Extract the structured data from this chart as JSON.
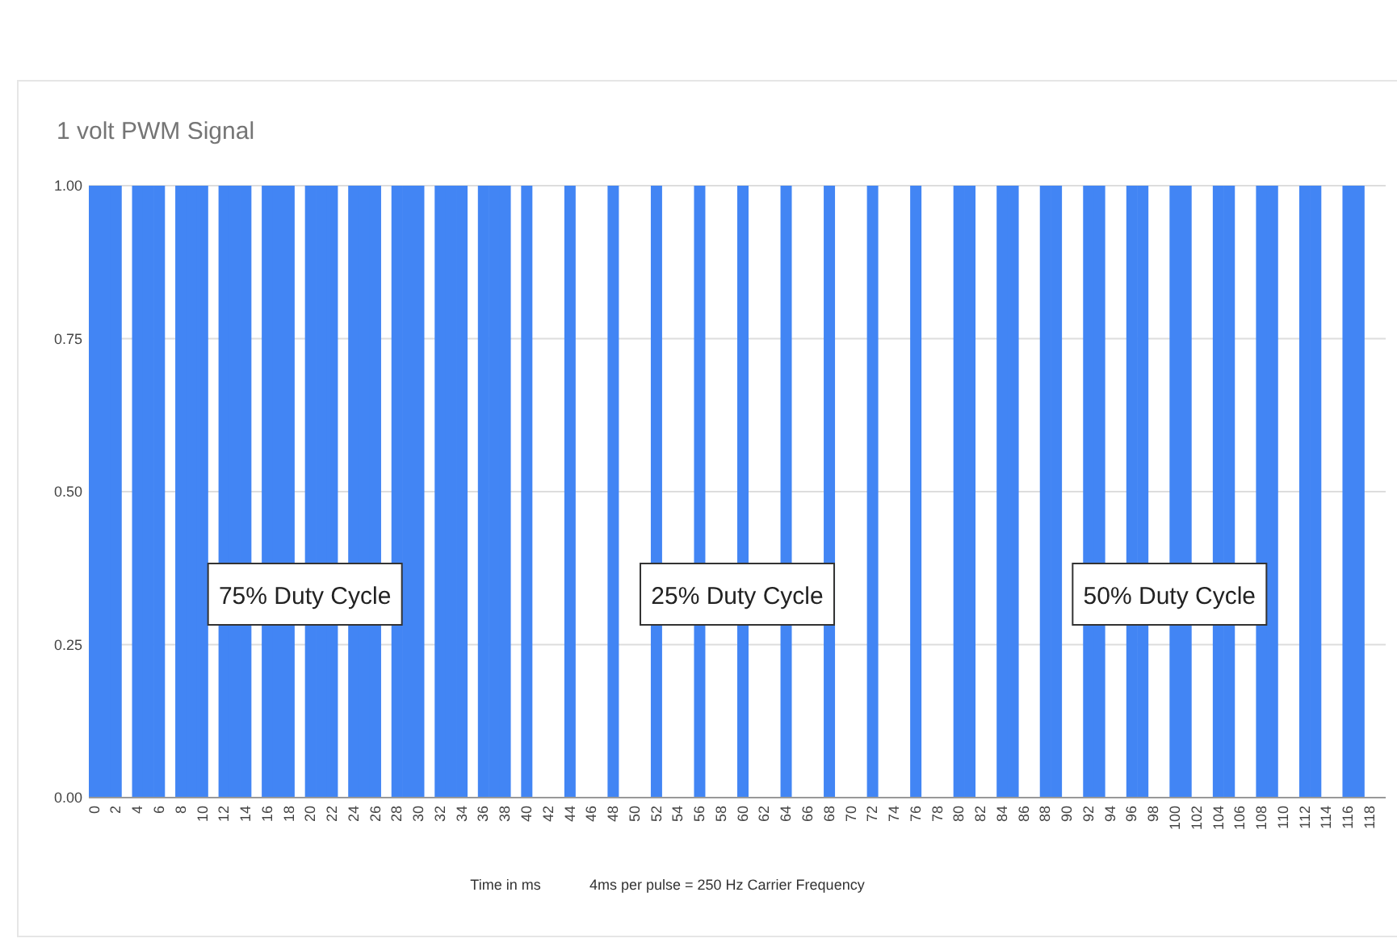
{
  "chart_data": {
    "type": "bar",
    "title": "1 volt PWM Signal",
    "xlabel": "Time in ms",
    "categories": [
      "0",
      null,
      "2",
      null,
      "4",
      null,
      "6",
      null,
      "8",
      null,
      "10",
      null,
      "12",
      null,
      "14",
      null,
      "16",
      null,
      "18",
      null,
      "20",
      null,
      "22",
      null,
      "24",
      null,
      "26",
      null,
      "28",
      null,
      "30",
      null,
      "32",
      null,
      "34",
      null,
      "36",
      null,
      "38",
      null,
      "40",
      null,
      "42",
      null,
      "44",
      null,
      "46",
      null,
      "48",
      null,
      "50",
      null,
      "52",
      null,
      "54",
      null,
      "56",
      null,
      "58",
      null,
      "60",
      null,
      "62",
      null,
      "64",
      null,
      "66",
      null,
      "68",
      null,
      "70",
      null,
      "72",
      null,
      "74",
      null,
      "76",
      null,
      "78",
      null,
      "80",
      null,
      "82",
      null,
      "84",
      null,
      "86",
      null,
      "88",
      null,
      "90",
      null,
      "92",
      null,
      "94",
      null,
      "96",
      null,
      "98",
      null,
      "100",
      null,
      "102",
      null,
      "104",
      null,
      "106",
      null,
      "108",
      null,
      "110",
      null,
      "112",
      null,
      "114",
      null,
      "116",
      null,
      "118",
      null
    ],
    "values": [
      1,
      1,
      1,
      0,
      1,
      1,
      1,
      0,
      1,
      1,
      1,
      0,
      1,
      1,
      1,
      0,
      1,
      1,
      1,
      0,
      1,
      1,
      1,
      0,
      1,
      1,
      1,
      0,
      1,
      1,
      1,
      0,
      1,
      1,
      1,
      0,
      1,
      1,
      1,
      0,
      1,
      0,
      0,
      0,
      1,
      0,
      0,
      0,
      1,
      0,
      0,
      0,
      1,
      0,
      0,
      0,
      1,
      0,
      0,
      0,
      1,
      0,
      0,
      0,
      1,
      0,
      0,
      0,
      1,
      0,
      0,
      0,
      1,
      0,
      0,
      0,
      1,
      0,
      0,
      0,
      1,
      1,
      0,
      0,
      1,
      1,
      0,
      0,
      1,
      1,
      0,
      0,
      1,
      1,
      0,
      0,
      1,
      1,
      0,
      0,
      1,
      1,
      0,
      0,
      1,
      1,
      0,
      0,
      1,
      1,
      0,
      0,
      1,
      1,
      0,
      0,
      1,
      1,
      0,
      0
    ],
    "color": "#4285f4",
    "ylim": [
      0,
      1
    ],
    "yticks": [
      {
        "value": 0,
        "label": "0.00"
      },
      {
        "value": 0.25,
        "label": "0.25"
      },
      {
        "value": 0.5,
        "label": "0.50"
      },
      {
        "value": 0.75,
        "label": "0.75"
      },
      {
        "value": 1,
        "label": "1.00"
      }
    ],
    "grid": "y",
    "annotations": [
      "75% Duty Cycle",
      "25% Duty Cycle",
      "50% Duty Cycle",
      "4ms per pulse = 250 Hz Carrier Frequency"
    ]
  }
}
